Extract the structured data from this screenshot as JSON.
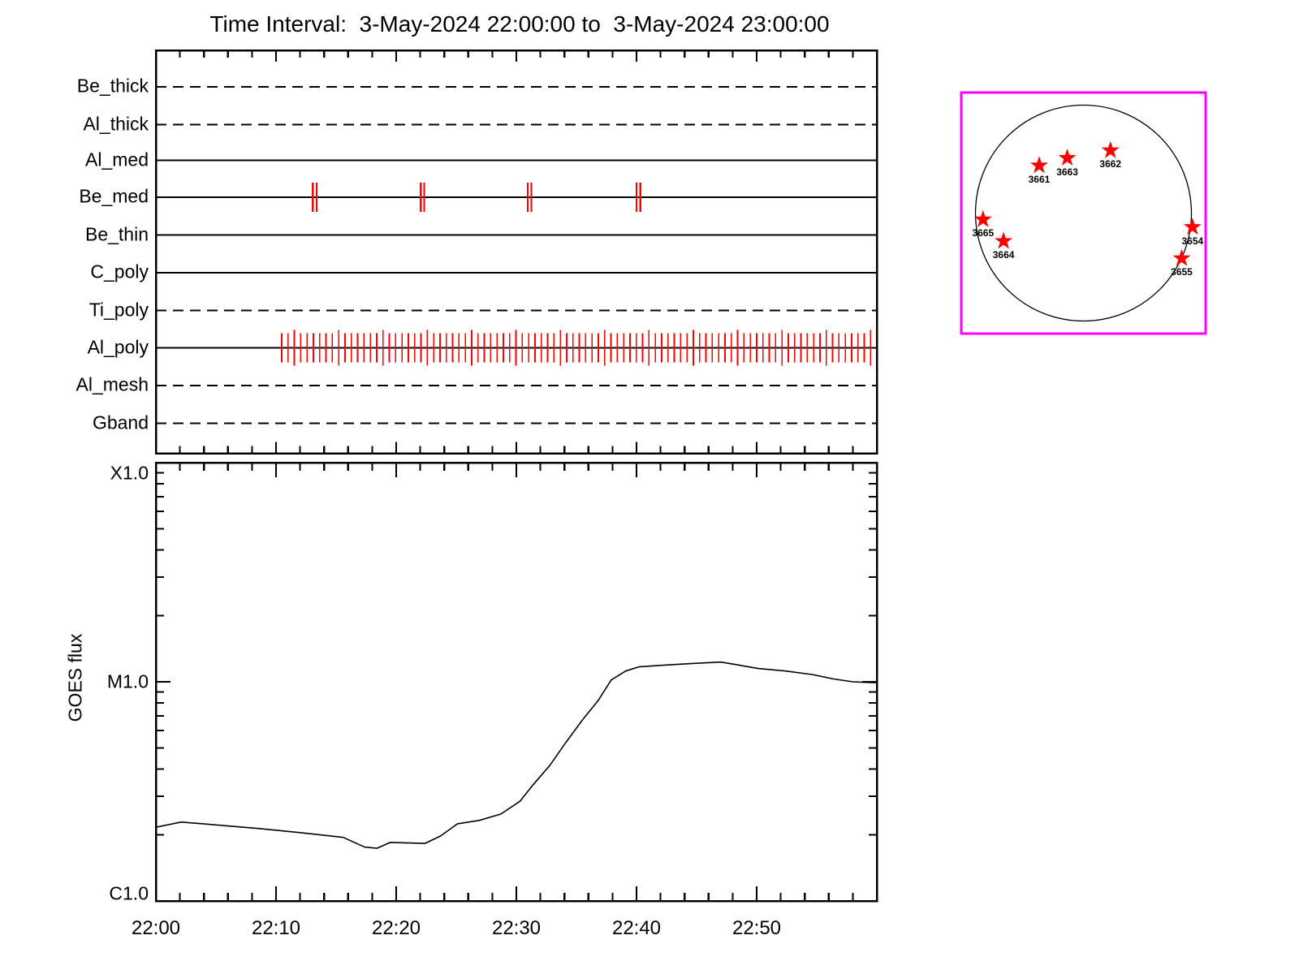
{
  "title": "Time Interval:  3-May-2024 22:00:00 to  3-May-2024 23:00:00",
  "colors": {
    "axis": "#000000",
    "exposure_tick": "#ff0000",
    "star": "#ff0000",
    "sun_box_border": "#ff00ff",
    "background": "#ffffff"
  },
  "timeline": {
    "time_start": "3-May-2024 22:00:00",
    "time_end": "3-May-2024 23:00:00",
    "x_range_minutes": [
      0,
      60
    ],
    "minor_tick_minutes": 2,
    "major_tick_minutes": 10,
    "channels": [
      {
        "label": "Be_thick",
        "line_style": "dashed",
        "exposures_min": []
      },
      {
        "label": "Al_thick",
        "line_style": "dashed",
        "exposures_min": []
      },
      {
        "label": "Al_med",
        "line_style": "solid",
        "exposures_min": []
      },
      {
        "label": "Be_med",
        "line_style": "solid",
        "exposures_min": [
          13.06,
          13.38,
          22.05,
          22.34,
          30.95,
          31.26,
          40.0,
          40.32
        ]
      },
      {
        "label": "Be_thin",
        "line_style": "solid",
        "exposures_min": []
      },
      {
        "label": "C_poly",
        "line_style": "solid",
        "exposures_min": []
      },
      {
        "label": "Ti_poly",
        "line_style": "dashed",
        "exposures_min": []
      },
      {
        "label": "Al_poly",
        "line_style": "solid",
        "exposures_min": [],
        "exposure_train": {
          "start_min": 10.47,
          "end_min": 59.7,
          "interval_min": 0.527
        }
      },
      {
        "label": "Al_mesh",
        "line_style": "dashed",
        "exposures_min": []
      },
      {
        "label": "Gband",
        "line_style": "dashed",
        "exposures_min": []
      }
    ]
  },
  "goes": {
    "ylabel": "GOES flux",
    "ytick_labels": [
      "X1.0",
      "M1.0",
      "C1.0"
    ],
    "xtick_labels": [
      "22:00",
      "22:10",
      "22:20",
      "22:30",
      "22:40",
      "22:50"
    ]
  },
  "chart_data": {
    "type": "line",
    "title": "Time Interval:  3-May-2024 22:00:00 to  3-May-2024 23:00:00",
    "xlabel": "",
    "ylabel": "GOES flux",
    "x_unit": "time of day, 3-May-2024 (HH:MM)",
    "x_tick_labels": [
      "22:00",
      "22:10",
      "22:20",
      "22:30",
      "22:40",
      "22:50"
    ],
    "x_tick_minutes": [
      0,
      10,
      20,
      30,
      40,
      50
    ],
    "x_range_minutes": [
      0,
      60
    ],
    "y_scale": "log",
    "y_tick_labels": [
      "X1.0",
      "M1.0",
      "C1.0"
    ],
    "y_tick_flux_wm2": [
      0.0001,
      1e-05,
      1e-06
    ],
    "y_range_wm2": [
      1e-06,
      0.0001
    ],
    "grid": false,
    "legend": "none",
    "series": [
      {
        "name": "GOES flux",
        "x_minutes": [
          0,
          2.1,
          3.9,
          8.6,
          12.0,
          15.6,
          16.8,
          17.4,
          18.4,
          19.5,
          22.4,
          23.7,
          25.1,
          26.9,
          28.7,
          30.3,
          31.4,
          32.8,
          34.1,
          35.5,
          36.8,
          37.9,
          39.1,
          40.2,
          42.2,
          44.5,
          47.0,
          47.8,
          50.1,
          52.4,
          54.6,
          56.4,
          58.0,
          59.9
        ],
        "y_flux_wm2": [
          2.17e-06,
          2.29e-06,
          2.25e-06,
          2.14e-06,
          2.05e-06,
          1.95e-06,
          1.82e-06,
          1.76e-06,
          1.74e-06,
          1.85e-06,
          1.83e-06,
          1.98e-06,
          2.25e-06,
          2.33e-06,
          2.49e-06,
          2.85e-06,
          3.39e-06,
          4.16e-06,
          5.27e-06,
          6.7e-06,
          8.2e-06,
          1.02e-05,
          1.12e-05,
          1.17e-05,
          1.19e-05,
          1.21e-05,
          1.23e-05,
          1.21e-05,
          1.15e-05,
          1.12e-05,
          1.08e-05,
          1.03e-05,
          1e-05,
          9.9e-06
        ]
      }
    ]
  },
  "sun_map": {
    "description": "solar disk with flagged NOAA active regions",
    "regions": [
      {
        "label": "3661",
        "x_disk": -0.41,
        "y_disk": 0.44
      },
      {
        "label": "3663",
        "x_disk": -0.15,
        "y_disk": 0.51
      },
      {
        "label": "3662",
        "x_disk": 0.25,
        "y_disk": 0.58
      },
      {
        "label": "3665",
        "x_disk": -0.93,
        "y_disk": -0.06
      },
      {
        "label": "3664",
        "x_disk": -0.74,
        "y_disk": -0.26
      },
      {
        "label": "3654",
        "x_disk": 1.01,
        "y_disk": -0.13
      },
      {
        "label": "3655",
        "x_disk": 0.91,
        "y_disk": -0.42
      }
    ]
  }
}
